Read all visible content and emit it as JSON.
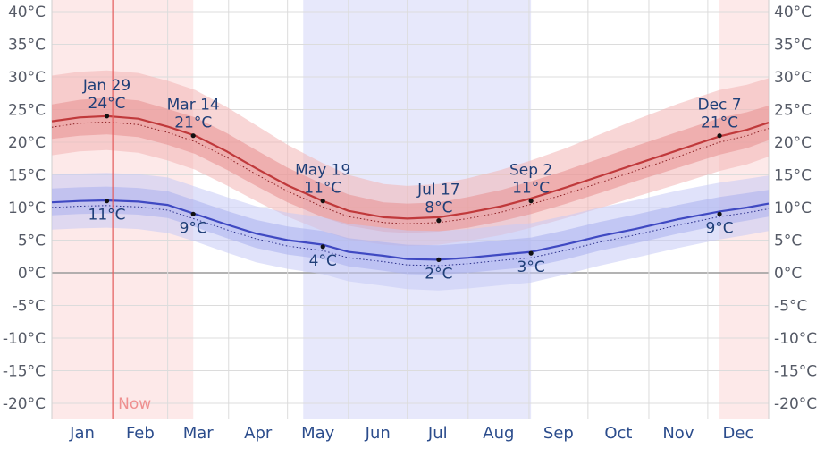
{
  "chart_data": {
    "type": "area",
    "y_unit": "°C",
    "ylim": [
      -22,
      40
    ],
    "grid": true,
    "y_ticks": [
      40,
      35,
      30,
      25,
      20,
      15,
      10,
      5,
      0,
      -5,
      -10,
      -15,
      -20
    ],
    "y_tick_labels": [
      "40°C",
      "35°C",
      "30°C",
      "25°C",
      "20°C",
      "15°C",
      "10°C",
      "5°C",
      "0°C",
      "-5°C",
      "-10°C",
      "-15°C",
      "-20°C"
    ],
    "months": [
      "Jan",
      "Feb",
      "Mar",
      "Apr",
      "May",
      "Jun",
      "Jul",
      "Aug",
      "Sep",
      "Oct",
      "Nov",
      "Dec"
    ],
    "now_label": "Now",
    "now_day": 32,
    "shaded_periods": [
      {
        "kind": "warm",
        "start_day": 1,
        "end_day": 73
      },
      {
        "kind": "warm",
        "start_day": 341,
        "end_day": 366
      },
      {
        "kind": "cool",
        "start_day": 129,
        "end_day": 245
      }
    ],
    "days": [
      1,
      15,
      29,
      45,
      60,
      74,
      90,
      105,
      121,
      139,
      152,
      170,
      182,
      198,
      213,
      230,
      245,
      262,
      280,
      298,
      320,
      341,
      355,
      366
    ],
    "series": [
      {
        "key": "high",
        "color": "#c0393b",
        "avg": [
          23.2,
          23.8,
          24.0,
          23.6,
          22.4,
          21.0,
          18.6,
          16.0,
          13.4,
          11.0,
          9.5,
          8.5,
          8.3,
          8.5,
          9.2,
          10.2,
          11.4,
          13.0,
          14.8,
          16.6,
          18.8,
          20.9,
          21.9,
          23.0
        ],
        "p25": [
          20.5,
          21.0,
          21.2,
          20.8,
          19.6,
          18.2,
          15.8,
          13.3,
          10.8,
          8.5,
          7.2,
          6.3,
          6.1,
          6.3,
          6.9,
          7.9,
          9.0,
          10.5,
          12.2,
          14.0,
          16.1,
          18.1,
          19.1,
          20.3
        ],
        "p75": [
          25.8,
          26.5,
          26.8,
          26.4,
          25.1,
          23.8,
          21.4,
          18.8,
          16.1,
          13.6,
          12.0,
          10.8,
          10.6,
          10.8,
          11.6,
          12.7,
          14.0,
          15.6,
          17.5,
          19.4,
          21.6,
          23.7,
          24.6,
          25.6
        ],
        "p10": [
          18.0,
          18.6,
          18.8,
          18.4,
          17.2,
          15.8,
          13.4,
          11.0,
          8.6,
          6.4,
          5.1,
          4.3,
          4.1,
          4.3,
          4.9,
          5.8,
          6.9,
          8.3,
          9.9,
          11.6,
          13.6,
          15.6,
          16.6,
          17.8
        ],
        "p90": [
          30.2,
          30.8,
          31.0,
          30.6,
          29.4,
          28.0,
          25.4,
          22.6,
          19.6,
          16.8,
          15.0,
          13.6,
          13.3,
          13.6,
          14.5,
          15.8,
          17.2,
          19.0,
          21.2,
          23.4,
          25.9,
          28.0,
          28.8,
          29.8
        ],
        "feels": [
          22.3,
          22.9,
          23.1,
          22.7,
          21.5,
          20.1,
          17.7,
          15.1,
          12.5,
          10.1,
          8.6,
          7.7,
          7.5,
          7.7,
          8.3,
          9.3,
          10.5,
          12.0,
          13.8,
          15.6,
          17.8,
          20.0,
          21.0,
          22.1
        ]
      },
      {
        "key": "low",
        "color": "#3f49c2",
        "avg": [
          10.8,
          11.0,
          11.1,
          10.9,
          10.4,
          9.0,
          7.4,
          6.0,
          5.0,
          4.3,
          3.2,
          2.6,
          2.1,
          2.0,
          2.3,
          2.8,
          3.2,
          4.3,
          5.6,
          6.7,
          8.2,
          9.4,
          10.0,
          10.6
        ],
        "p25": [
          8.8,
          9.0,
          9.1,
          8.9,
          8.4,
          7.0,
          5.3,
          3.8,
          2.8,
          2.1,
          1.0,
          0.3,
          -0.2,
          -0.3,
          0.0,
          0.5,
          0.9,
          2.0,
          3.4,
          4.5,
          6.0,
          7.3,
          8.0,
          8.6
        ],
        "p75": [
          12.9,
          13.1,
          13.2,
          13.0,
          12.5,
          11.1,
          9.5,
          8.1,
          7.1,
          6.4,
          5.3,
          4.7,
          4.3,
          4.2,
          4.5,
          5.0,
          5.4,
          6.5,
          7.8,
          8.9,
          10.4,
          11.6,
          12.2,
          12.7
        ],
        "p10": [
          6.6,
          6.8,
          6.9,
          6.7,
          6.1,
          4.8,
          3.1,
          1.6,
          0.6,
          -0.2,
          -1.3,
          -2.0,
          -2.5,
          -2.7,
          -2.4,
          -1.9,
          -1.5,
          -0.3,
          1.1,
          2.3,
          3.8,
          5.1,
          5.8,
          6.4
        ],
        "p90": [
          15.0,
          15.2,
          15.3,
          15.1,
          14.6,
          13.2,
          11.6,
          10.2,
          9.2,
          8.5,
          7.5,
          6.9,
          6.5,
          6.4,
          6.7,
          7.2,
          7.6,
          8.7,
          10.0,
          11.1,
          12.6,
          13.8,
          14.4,
          14.9
        ],
        "feels": [
          10.0,
          10.2,
          10.3,
          10.1,
          9.6,
          8.2,
          6.6,
          5.2,
          4.1,
          3.4,
          2.3,
          1.7,
          1.2,
          1.1,
          1.4,
          1.9,
          2.3,
          3.4,
          4.7,
          5.8,
          7.3,
          8.6,
          9.2,
          9.8
        ]
      }
    ],
    "annotations": [
      {
        "series": "high",
        "day": 29,
        "value": 24,
        "date": "Jan 29",
        "temp": "24°C",
        "position": "above"
      },
      {
        "series": "high",
        "day": 73,
        "value": 21,
        "date": "Mar 14",
        "temp": "21°C",
        "position": "above"
      },
      {
        "series": "high",
        "day": 139,
        "value": 11,
        "date": "May 19",
        "temp": "11°C",
        "position": "above"
      },
      {
        "series": "high",
        "day": 198,
        "value": 8,
        "date": "Jul 17",
        "temp": "8°C",
        "position": "above"
      },
      {
        "series": "high",
        "day": 245,
        "value": 11,
        "date": "Sep 2",
        "temp": "11°C",
        "position": "above"
      },
      {
        "series": "high",
        "day": 341,
        "value": 21,
        "date": "Dec 7",
        "temp": "21°C",
        "position": "above"
      },
      {
        "series": "low",
        "day": 29,
        "value": 11,
        "temp": "11°C",
        "position": "below"
      },
      {
        "series": "low",
        "day": 73,
        "value": 9,
        "temp": "9°C",
        "position": "below"
      },
      {
        "series": "low",
        "day": 139,
        "value": 4,
        "temp": "4°C",
        "position": "below"
      },
      {
        "series": "low",
        "day": 198,
        "value": 2,
        "temp": "2°C",
        "position": "below"
      },
      {
        "series": "low",
        "day": 245,
        "value": 3,
        "temp": "3°C",
        "position": "below"
      },
      {
        "series": "low",
        "day": 341,
        "value": 9,
        "temp": "9°C",
        "position": "below"
      }
    ]
  }
}
